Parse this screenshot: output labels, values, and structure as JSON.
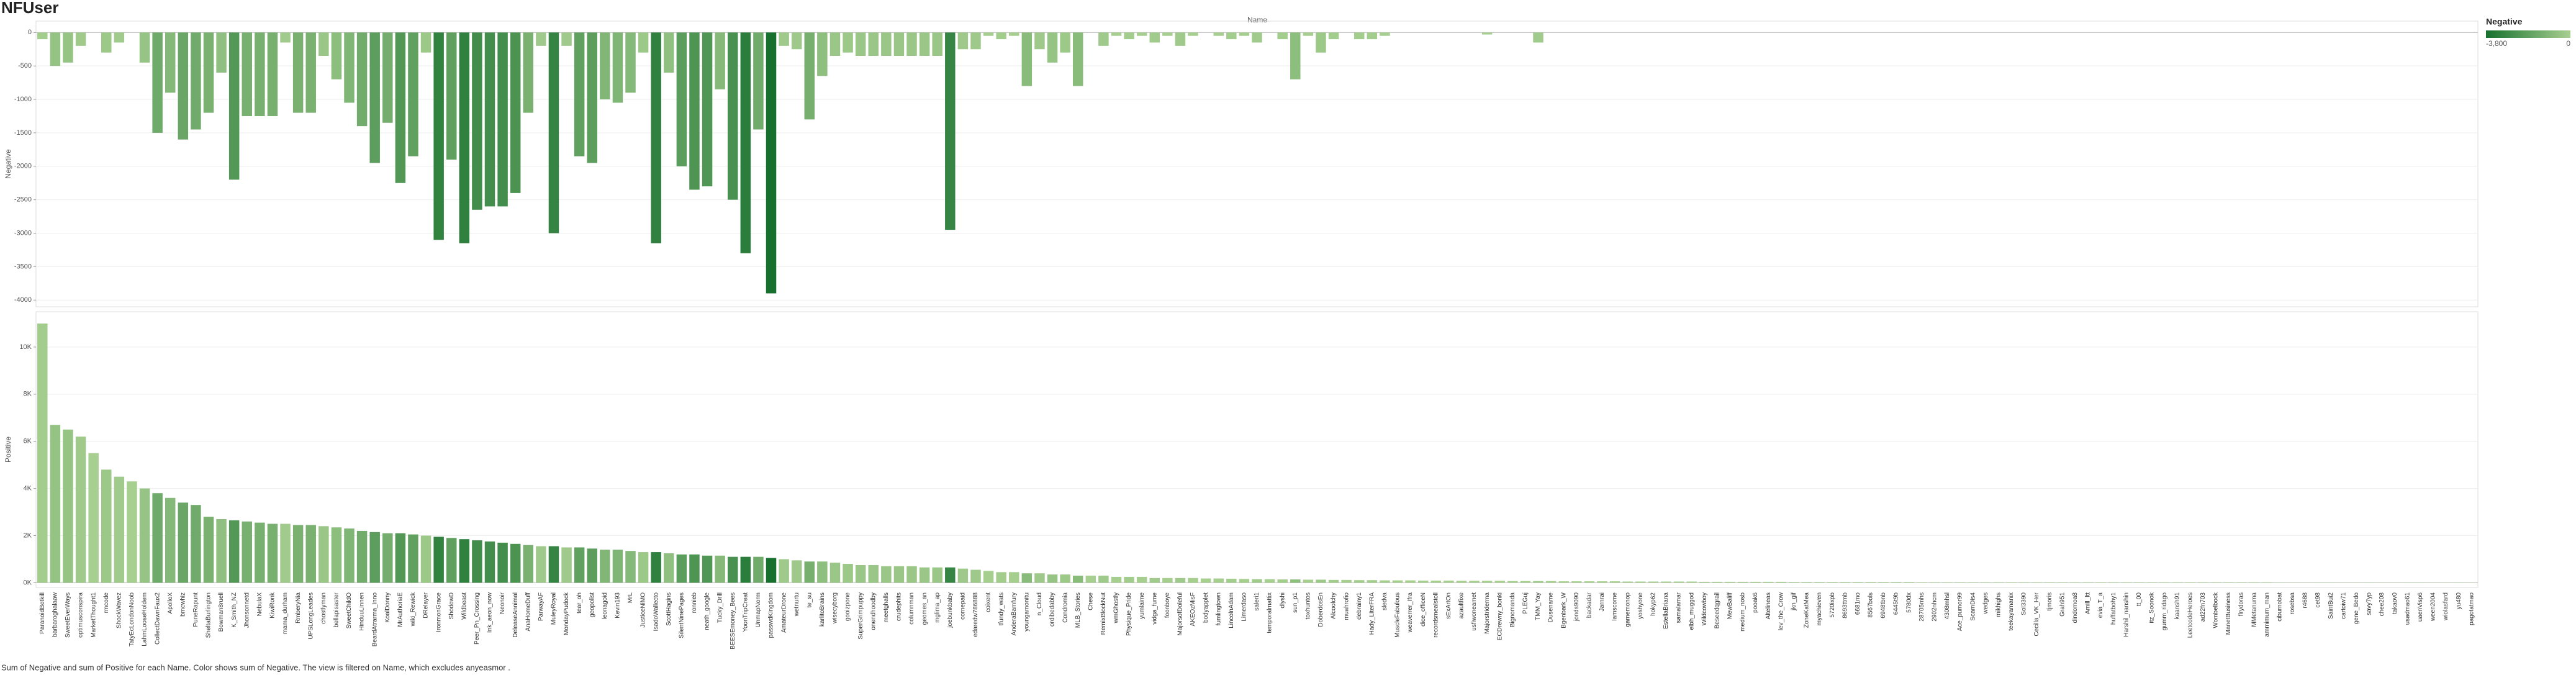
{
  "chart_data": [
    {
      "type": "bar",
      "title": "NFUser",
      "x_label": "Name",
      "y_label": "Negative",
      "values": [
        -100,
        -500,
        -450,
        -200,
        0,
        -300,
        -150,
        0,
        -450,
        -1500,
        -900,
        -1600,
        -1450,
        -1200,
        -600,
        -2200,
        -1250,
        -1250,
        -1250,
        -150,
        -1200,
        -1200,
        -350,
        -700,
        -1050,
        -1400,
        -1950,
        -1350,
        -2250,
        -1850,
        -300,
        -3100,
        -1900,
        -3150,
        -2650,
        -2600,
        -2600,
        -2400,
        -1200,
        -200,
        -3000,
        -200,
        -1850,
        -1950,
        -1000,
        -1050,
        -900,
        -300,
        -3150,
        -600,
        -2000,
        -2350,
        -2300,
        -850,
        -2500,
        -3300,
        -1450,
        -3900,
        -200,
        -250,
        -1300,
        -650,
        -350,
        -300,
        -350,
        -350,
        -350,
        -350,
        -350,
        -350,
        -350,
        -2950,
        -250,
        -250,
        -50,
        -100,
        -50,
        -800,
        -250,
        -450,
        -300,
        -800,
        0,
        -200,
        -50,
        -100,
        -50,
        -150,
        -50,
        -200,
        -50,
        0,
        -50,
        -100,
        -50,
        -150,
        0,
        -100,
        -700,
        -50,
        -300,
        -100,
        0,
        -100,
        -100,
        -50,
        0,
        0,
        0,
        0,
        0,
        0,
        0,
        -30,
        0,
        0,
        0,
        -150,
        0,
        0,
        0,
        0,
        0,
        0,
        0,
        0,
        0,
        0,
        0,
        0,
        0,
        0,
        0,
        0,
        0,
        0,
        0,
        0,
        0,
        0,
        0,
        0,
        0,
        0,
        0,
        0,
        0,
        0,
        0,
        0,
        0,
        0,
        0,
        0,
        0,
        0,
        0,
        0,
        0,
        0,
        0,
        0,
        0,
        0,
        0,
        0,
        0,
        0,
        0,
        0,
        0,
        0,
        0,
        0,
        0,
        0,
        0,
        0,
        0,
        0,
        0,
        0,
        0,
        0,
        0,
        0,
        0,
        0,
        0,
        0,
        0
      ],
      "ylim": [
        -4100,
        170
      ],
      "yticks": [
        0,
        -500,
        -1000,
        -1500,
        -2000,
        -2500,
        -3000,
        -3500,
        -4000
      ],
      "grid": true,
      "color_scale": {
        "title": "Negative",
        "colors": [
          "#17702e",
          "#a7cf90"
        ],
        "range": [
          {
            "value": -3800,
            "label": "-3,800"
          },
          0
        ]
      }
    },
    {
      "type": "bar",
      "y_label": "Positive",
      "categories": [
        "ParanoidBotkill",
        "barbaroghalaaw",
        "SweetEverWays",
        "optimusconspira",
        "MarketThought1",
        "rmcode",
        "ShockWavez",
        "TatyEcLondonNoob",
        "LahmLooseHoldem",
        "CollectDawnFaux2",
        "ApolloX",
        "bmcwhiz",
        "PuneRapunt",
        "SheltaBurlington",
        "Bowman8ruell",
        "K_Smith_NZ",
        "Jhonsonnetd",
        "NebulaX",
        "KiwiRonk",
        "mama_durham",
        "RmberyNia",
        "UPSLongLeades",
        "chostlyman",
        "bellapisaster",
        "SweetChildO",
        "HinduuLinnen",
        "BeardAtrarma_Inno",
        "KoalDonny",
        "MrAuthoriaE",
        "wiki_Rewick",
        "DRelayer",
        "IronmonGrace",
        "ShodowD",
        "Wildbeast",
        "Peer_Pn_Crossing",
        "Ink_aeon_now",
        "Neonoir",
        "DeleaseAnnimal",
        "AnaHomeDuff",
        "ParwayAF",
        "MuleyRoyal",
        "MondayPudock",
        "tear_oh",
        "geopolist",
        "leonagoid",
        "Kevin193",
        "MrL",
        "JusticeNiMO",
        "IsadoWallecto",
        "ScottHagins",
        "SilentNinePages",
        "ronnieb",
        "neath_google",
        "Tucky_Drill",
        "BEESEmoney_Bees",
        "YoonTripCreat",
        "UnmapNorm",
        "passwdKingdom",
        "AmateurDrone",
        "wetnurtu",
        "te_su",
        "karlitoBrains",
        "wisecyborg",
        "gooizpone",
        "SuperGrimpuppy",
        "onendhoodby",
        "meetghalls",
        "crudephits",
        "columnman",
        "geomes_an",
        "mglima_ap",
        "joebunkbaby",
        "cornepaid",
        "edaredw786888",
        "coixent",
        "tfundy_wats",
        "AnderaBamfury",
        "youngamonitu",
        "n_Cloud",
        "ordibedabby",
        "Condromia",
        "MLB_Stories",
        "Chese",
        "RemixBlockNut",
        "wmGhostly",
        "Physique_Pride",
        "yumlaime",
        "vidga_fume",
        "foonboye",
        "MajorsofDoleful",
        "AKEOzMisF",
        "bodyapplet",
        "fumlingtown",
        "LincolnAdam",
        "Limerdaso",
        "saleri1",
        "temporalmattix",
        "dlyshi",
        "sun_p1",
        "toxhuntos",
        "DoberdosEn",
        "Alcoolchy",
        "muahrofio",
        "debrainy1",
        "Hady_LiterFRA",
        "sledva",
        "MuscleFabulous",
        "weaverrer_Ifra",
        "dice_officeN",
        "recordsmealstoll",
        "sExArtOn",
        "azaultfixe",
        "usfiwoneamet",
        "Majorstriderma",
        "ECDrewny_bonki",
        "Bignomanda",
        "PLEGuj",
        "TMM_Yay",
        "Dusename",
        "Bgenbark_W",
        "jonds9090",
        "backadar",
        "Jarnrai",
        "lamscome",
        "gamemonop",
        "yoshyone",
        "hokyp62",
        "EstellaBriana",
        "samalamar",
        "elbh_muggod",
        "Wildcowboy",
        "Beseedqgrail",
        "MewBaliff",
        "medium_nosb",
        "pooak6",
        "Altelineas",
        "lev_the_Crow",
        "jkn_gif",
        "ZoneKatMea",
        "myachieven",
        "5720ixpb",
        "8693ttmb",
        "6681mo",
        "8567bols",
        "6948tbnb",
        "6445t9b",
        "5780dx",
        "28705mhs",
        "2902nhcm",
        "4308mhsl",
        "Ace_pumor99",
        "ScamDis4",
        "wedges",
        "mikhighs",
        "teekayamanix",
        "Sol3390",
        "Cecilla_VK_Her",
        "tjmoris",
        "Grah951",
        "dindomoa8",
        "Amill_ltt",
        "evia_T_a",
        "huffatbohy1",
        "Harshil_nanshin",
        "tt_00",
        "itz_Soonok",
        "gumm_ridago",
        "kaansh91",
        "LeetcodeHeroes",
        "ad22fn703",
        "Wombelbock",
        "ManetBusiness",
        "flrydoras",
        "MMetanuma",
        "ammimum_man",
        "ciburnobat",
        "rosebsa",
        "r4688",
        "cet98",
        "SaintBui2",
        "cartoiw71",
        "gene_Bedo",
        "savy7yp",
        "chee208",
        "takaov0",
        "usadmao61",
        "uaenVisp6",
        "ween2004",
        "wiolasfard",
        "yu480",
        "pagotatmao"
      ],
      "values": [
        11000,
        6700,
        6500,
        6200,
        5500,
        4800,
        4500,
        4300,
        4000,
        3800,
        3600,
        3400,
        3300,
        2800,
        2700,
        2650,
        2600,
        2550,
        2500,
        2500,
        2450,
        2450,
        2400,
        2350,
        2300,
        2200,
        2150,
        2100,
        2100,
        2050,
        2000,
        1950,
        1900,
        1850,
        1800,
        1750,
        1700,
        1650,
        1600,
        1550,
        1550,
        1500,
        1500,
        1450,
        1400,
        1400,
        1350,
        1300,
        1300,
        1250,
        1200,
        1200,
        1150,
        1150,
        1100,
        1100,
        1100,
        1050,
        1000,
        950,
        900,
        900,
        850,
        800,
        750,
        750,
        700,
        700,
        700,
        650,
        650,
        650,
        600,
        550,
        500,
        450,
        450,
        400,
        400,
        350,
        350,
        300,
        300,
        300,
        250,
        250,
        250,
        200,
        200,
        200,
        200,
        180,
        180,
        170,
        160,
        150,
        150,
        140,
        140,
        130,
        130,
        120,
        120,
        110,
        110,
        100,
        100,
        100,
        90,
        90,
        90,
        80,
        80,
        80,
        80,
        70,
        70,
        70,
        70,
        60,
        60,
        60,
        60,
        60,
        50,
        50,
        50,
        50,
        50,
        50,
        40,
        40,
        40,
        40,
        40,
        40,
        40,
        30,
        30,
        30,
        30,
        30,
        30,
        30,
        30,
        30,
        30,
        20,
        20,
        20,
        20,
        20,
        20,
        20,
        20,
        20,
        20,
        20,
        20,
        20,
        20,
        20,
        20,
        20,
        20,
        20,
        20,
        20,
        20,
        20,
        20,
        20,
        20,
        20,
        20,
        10,
        10,
        10,
        10,
        10,
        10,
        10,
        10,
        10,
        10,
        10,
        10,
        10,
        10,
        10,
        10
      ],
      "ylim": [
        -200,
        11500
      ],
      "yticks": [
        {
          "value": 0,
          "label": "0K"
        },
        {
          "value": 2000,
          "label": "2K"
        },
        {
          "value": 4000,
          "label": "4K"
        },
        {
          "value": 6000,
          "label": "6K"
        },
        {
          "value": 8000,
          "label": "8K"
        },
        {
          "value": 10000,
          "label": "10K"
        }
      ],
      "grid": true,
      "caption": "Sum of Negative and sum of Positive for each Name.  Color shows sum of Negative. The view is filtered on Name, which excludes anyeasmor ."
    }
  ]
}
